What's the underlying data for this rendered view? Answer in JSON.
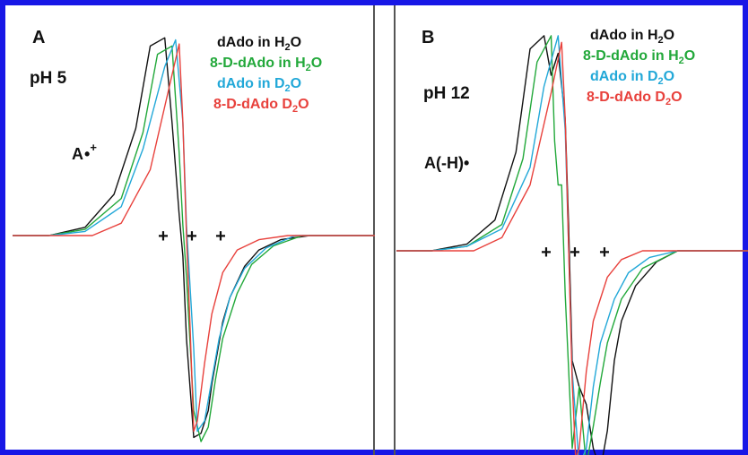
{
  "panels": [
    {
      "letter": "A",
      "condition": "pH 5",
      "species": "A•+",
      "legend": [
        {
          "parts": [
            "dAdo in H",
            "2",
            "O"
          ],
          "color": "#111111"
        },
        {
          "parts": [
            "8-D-dAdo in H",
            "2",
            "O"
          ],
          "color": "#22a83a"
        },
        {
          "parts": [
            "dAdo in D",
            "2",
            "O"
          ],
          "color": "#22a8d8"
        },
        {
          "parts": [
            "8-D-dAdo D",
            "2",
            "O"
          ],
          "color": "#e8413c"
        }
      ],
      "markers": [
        "+",
        "+",
        "+"
      ]
    },
    {
      "letter": "B",
      "condition": "pH 12",
      "species": "A(-H)•",
      "legend": [
        {
          "parts": [
            "dAdo in H",
            "2",
            "O"
          ],
          "color": "#111111"
        },
        {
          "parts": [
            "8-D-dAdo in H",
            "2",
            "O"
          ],
          "color": "#22a83a"
        },
        {
          "parts": [
            "dAdo in D",
            "2",
            "O"
          ],
          "color": "#22a8d8"
        },
        {
          "parts": [
            "8-D-dAdo D",
            "2",
            "O"
          ],
          "color": "#e8413c"
        }
      ],
      "markers": [
        "+",
        "+",
        "+"
      ]
    }
  ],
  "chart_data": [
    {
      "type": "line",
      "title": "A",
      "xlabel": "",
      "ylabel": "",
      "grid": false,
      "legend_position": "top-right",
      "xlim": [
        0,
        100
      ],
      "ylim": [
        -1,
        1
      ],
      "series": [
        {
          "name": "dAdo in H2O",
          "color": "#111111",
          "x": [
            0,
            10,
            20,
            28,
            34,
            38,
            42,
            44,
            46,
            47,
            48,
            50,
            52,
            54,
            55,
            56,
            58,
            60,
            64,
            68,
            74,
            82,
            90,
            100
          ],
          "y": [
            0,
            0,
            0.04,
            0.2,
            0.52,
            0.92,
            0.96,
            0.55,
            0.1,
            -0.1,
            -0.5,
            -0.98,
            -0.96,
            -0.85,
            -0.72,
            -0.62,
            -0.42,
            -0.3,
            -0.15,
            -0.07,
            -0.02,
            0,
            0,
            0
          ]
        },
        {
          "name": "8-D-dAdo in H2O",
          "color": "#22a83a",
          "x": [
            0,
            10,
            20,
            30,
            36,
            40,
            44,
            46,
            47,
            48,
            50,
            52,
            54,
            56,
            58,
            62,
            66,
            72,
            80,
            90,
            100
          ],
          "y": [
            0,
            0,
            0.03,
            0.18,
            0.5,
            0.88,
            0.92,
            0.4,
            0.05,
            -0.2,
            -0.85,
            -1.0,
            -0.93,
            -0.7,
            -0.5,
            -0.28,
            -0.14,
            -0.05,
            0,
            0,
            0
          ]
        },
        {
          "name": "dAdo in D2O",
          "color": "#22a8d8",
          "x": [
            0,
            10,
            20,
            30,
            36,
            42,
            45,
            47,
            48,
            50,
            51,
            53,
            55,
            57,
            60,
            64,
            70,
            78,
            90,
            100
          ],
          "y": [
            0,
            0,
            0.02,
            0.14,
            0.42,
            0.82,
            0.95,
            0.55,
            0.05,
            -0.55,
            -0.95,
            -0.9,
            -0.7,
            -0.5,
            -0.3,
            -0.16,
            -0.06,
            0,
            0,
            0
          ]
        },
        {
          "name": "8-D-dAdo D2O",
          "color": "#e8413c",
          "x": [
            0,
            10,
            22,
            30,
            38,
            44,
            46,
            47,
            48,
            49,
            50,
            51,
            53,
            55,
            58,
            62,
            68,
            76,
            88,
            100
          ],
          "y": [
            0,
            0,
            0,
            0.06,
            0.32,
            0.78,
            0.93,
            0.55,
            0.0,
            -0.45,
            -0.95,
            -0.9,
            -0.62,
            -0.38,
            -0.18,
            -0.07,
            -0.02,
            0,
            0,
            0
          ]
        }
      ]
    },
    {
      "type": "line",
      "title": "B",
      "xlabel": "",
      "ylabel": "",
      "grid": false,
      "legend_position": "top-right",
      "xlim": [
        0,
        100
      ],
      "ylim": [
        -1,
        1
      ],
      "series": [
        {
          "name": "dAdo in H2O",
          "color": "#111111",
          "x": [
            0,
            10,
            20,
            28,
            34,
            38,
            42,
            44,
            46,
            48,
            49,
            50,
            52,
            54,
            56,
            58,
            60,
            62,
            64,
            68,
            74,
            80,
            88,
            100
          ],
          "y": [
            0,
            0,
            0.03,
            0.14,
            0.45,
            0.92,
            0.98,
            0.8,
            0.9,
            0.6,
            0.1,
            -0.5,
            -0.62,
            -0.7,
            -0.9,
            -1.0,
            -0.82,
            -0.5,
            -0.32,
            -0.16,
            -0.05,
            0,
            0,
            0
          ]
        },
        {
          "name": "8-D-dAdo in H2O",
          "color": "#22a83a",
          "x": [
            0,
            10,
            20,
            30,
            36,
            40,
            44,
            45,
            46,
            47,
            48,
            50,
            52,
            54,
            56,
            58,
            60,
            64,
            70,
            80,
            90,
            100
          ],
          "y": [
            0,
            0,
            0.02,
            0.12,
            0.42,
            0.86,
            0.98,
            0.5,
            0.3,
            0.3,
            -0.2,
            -0.9,
            -0.62,
            -0.98,
            -0.8,
            -0.6,
            -0.42,
            -0.22,
            -0.08,
            0,
            0,
            0
          ]
        },
        {
          "name": "dAdo in D2O",
          "color": "#22a8d8",
          "x": [
            0,
            10,
            20,
            30,
            38,
            42,
            46,
            48,
            49,
            50,
            52,
            54,
            56,
            58,
            62,
            66,
            72,
            80,
            90,
            100
          ],
          "y": [
            0,
            0,
            0.02,
            0.1,
            0.38,
            0.75,
            0.98,
            0.55,
            0.0,
            -0.55,
            -0.98,
            -0.9,
            -0.62,
            -0.42,
            -0.22,
            -0.1,
            -0.03,
            0,
            0,
            0
          ]
        },
        {
          "name": "8-D-dAdo D2O",
          "color": "#e8413c",
          "x": [
            0,
            10,
            22,
            30,
            38,
            44,
            47,
            48,
            49,
            50,
            51,
            52,
            54,
            56,
            60,
            64,
            70,
            80,
            90,
            100
          ],
          "y": [
            0,
            0,
            0,
            0.06,
            0.3,
            0.72,
            0.95,
            0.6,
            0.0,
            -0.6,
            -0.95,
            -0.9,
            -0.55,
            -0.32,
            -0.12,
            -0.04,
            0,
            0,
            0,
            0
          ]
        }
      ]
    }
  ]
}
